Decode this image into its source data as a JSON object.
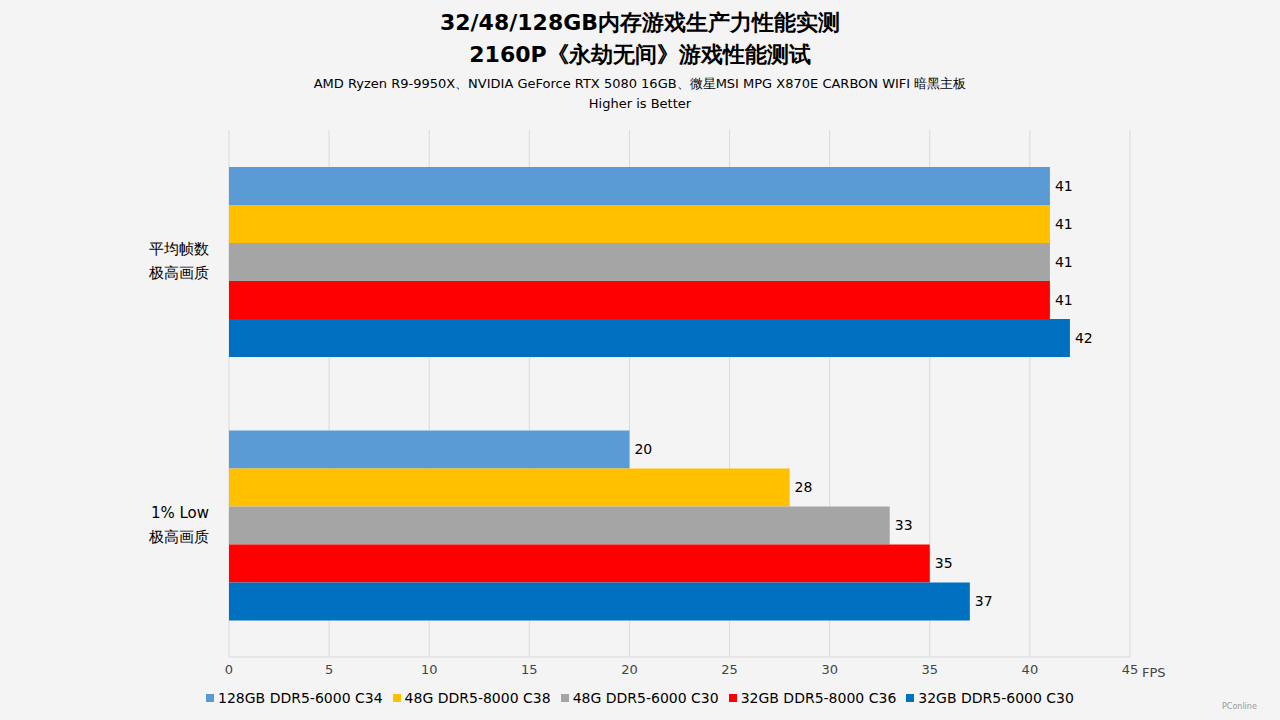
{
  "chart_data": {
    "type": "bar",
    "orientation": "horizontal",
    "title": "32/48/128GB内存游戏生产力性能实测",
    "subtitle": "2160P《永劫无间》游戏性能测试",
    "annotations": [
      "AMD Ryzen R9-9950X、NVIDIA GeForce RTX 5080 16GB、微星MSI MPG X870E CARBON WIFI 暗黑主板",
      "Higher is Better"
    ],
    "watermark": "PConline",
    "x_label": "FPS",
    "categories": [
      "平均帧数\n极高画质",
      "1% Low\n极高画质"
    ],
    "series": [
      {
        "name": "128GB DDR5-6000 C34",
        "color": "#5b9bd5",
        "values": [
          41,
          20
        ]
      },
      {
        "name": "48G DDR5-8000 C38",
        "color": "#ffc000",
        "values": [
          41,
          28
        ]
      },
      {
        "name": "48G DDR5-6000 C30",
        "color": "#a5a5a5",
        "values": [
          41,
          33
        ]
      },
      {
        "name": "32GB DDR5-8000 C36",
        "color": "#ff0000",
        "values": [
          41,
          35
        ]
      },
      {
        "name": "32GB DDR5-6000 C30",
        "color": "#0070c0",
        "values": [
          42,
          37
        ]
      }
    ],
    "xlim": [
      0,
      45
    ],
    "xticks": [
      0,
      5,
      10,
      15,
      20,
      25,
      30,
      35,
      40,
      45
    ],
    "grid": true,
    "data_labels": true,
    "legend": "bottom"
  }
}
